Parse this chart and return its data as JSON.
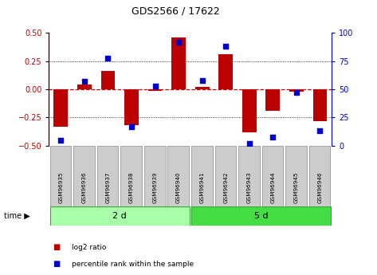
{
  "title": "GDS2566 / 17622",
  "samples": [
    "GSM96935",
    "GSM96936",
    "GSM96937",
    "GSM96938",
    "GSM96939",
    "GSM96940",
    "GSM96941",
    "GSM96942",
    "GSM96943",
    "GSM96944",
    "GSM96945",
    "GSM96946"
  ],
  "log2_ratio": [
    -0.33,
    0.04,
    0.16,
    -0.32,
    -0.01,
    0.46,
    0.02,
    0.31,
    -0.38,
    -0.19,
    -0.02,
    -0.28
  ],
  "percentile_rank": [
    5,
    57,
    78,
    17,
    53,
    92,
    58,
    88,
    2,
    8,
    47,
    13
  ],
  "group1_label": "2 d",
  "group2_label": "5 d",
  "group1_count": 6,
  "group2_count": 6,
  "bar_color": "#bb0000",
  "dot_color": "#0000cc",
  "ylim_left": [
    -0.5,
    0.5
  ],
  "ylim_right": [
    0,
    100
  ],
  "yticks_left": [
    -0.5,
    -0.25,
    0.0,
    0.25,
    0.5
  ],
  "yticks_right": [
    0,
    25,
    50,
    75,
    100
  ],
  "hline_color": "#cc0000",
  "dotline_y": [
    0.25,
    -0.25
  ],
  "group1_color": "#aaffaa",
  "group2_color": "#44dd44",
  "xlabel_bg": "#cccccc",
  "time_label": "time",
  "legend_bar_label": "log2 ratio",
  "legend_dot_label": "percentile rank within the sample"
}
